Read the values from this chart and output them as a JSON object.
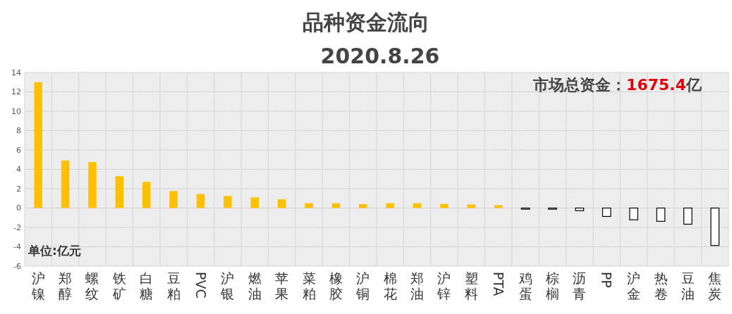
{
  "chart_data": {
    "type": "bar",
    "title": "品种资金流向",
    "subtitle": "2020.8.26",
    "categories": [
      "沪镍",
      "郑醇",
      "螺纹",
      "铁矿",
      "白糖",
      "豆粕",
      "PVC",
      "沪银",
      "燃油",
      "苹果",
      "菜粕",
      "橡胶",
      "沪铜",
      "棉花",
      "郑油",
      "沪锌",
      "塑料",
      "PTA",
      "鸡蛋",
      "棕榈",
      "沥青",
      "PP",
      "沪金",
      "热卷",
      "豆油",
      "焦炭"
    ],
    "values": [
      13.0,
      4.9,
      4.75,
      3.3,
      2.7,
      1.75,
      1.45,
      1.25,
      1.1,
      0.9,
      0.5,
      0.5,
      0.4,
      0.5,
      0.5,
      0.42,
      0.37,
      0.3,
      -0.12,
      -0.12,
      -0.27,
      -0.87,
      -1.22,
      -1.37,
      -1.67,
      -3.87
    ],
    "colors": [
      "#ffc000",
      "#ffc000",
      "#ffc000",
      "#ffc000",
      "#ffc000",
      "#ffc000",
      "#ffc000",
      "#ffc000",
      "#ffc000",
      "#ffc000",
      "#ffc000",
      "#ffc000",
      "#ffc000",
      "#ffc000",
      "#ffc000",
      "#ffc000",
      "#ffc000",
      "#ffc000",
      "#ffffff",
      "#ffffff",
      "#ffffff",
      "#ffffff",
      "#ffffff",
      "#ffffff",
      "#ffffff",
      "#ffffff"
    ],
    "ylim": [
      -6,
      14
    ],
    "yticks": [
      -6,
      -4,
      -2,
      0,
      2,
      4,
      6,
      8,
      10,
      12,
      14
    ],
    "grid": true,
    "annotations": [
      "市场总资金：1675.4亿",
      "单位:亿元"
    ]
  }
}
